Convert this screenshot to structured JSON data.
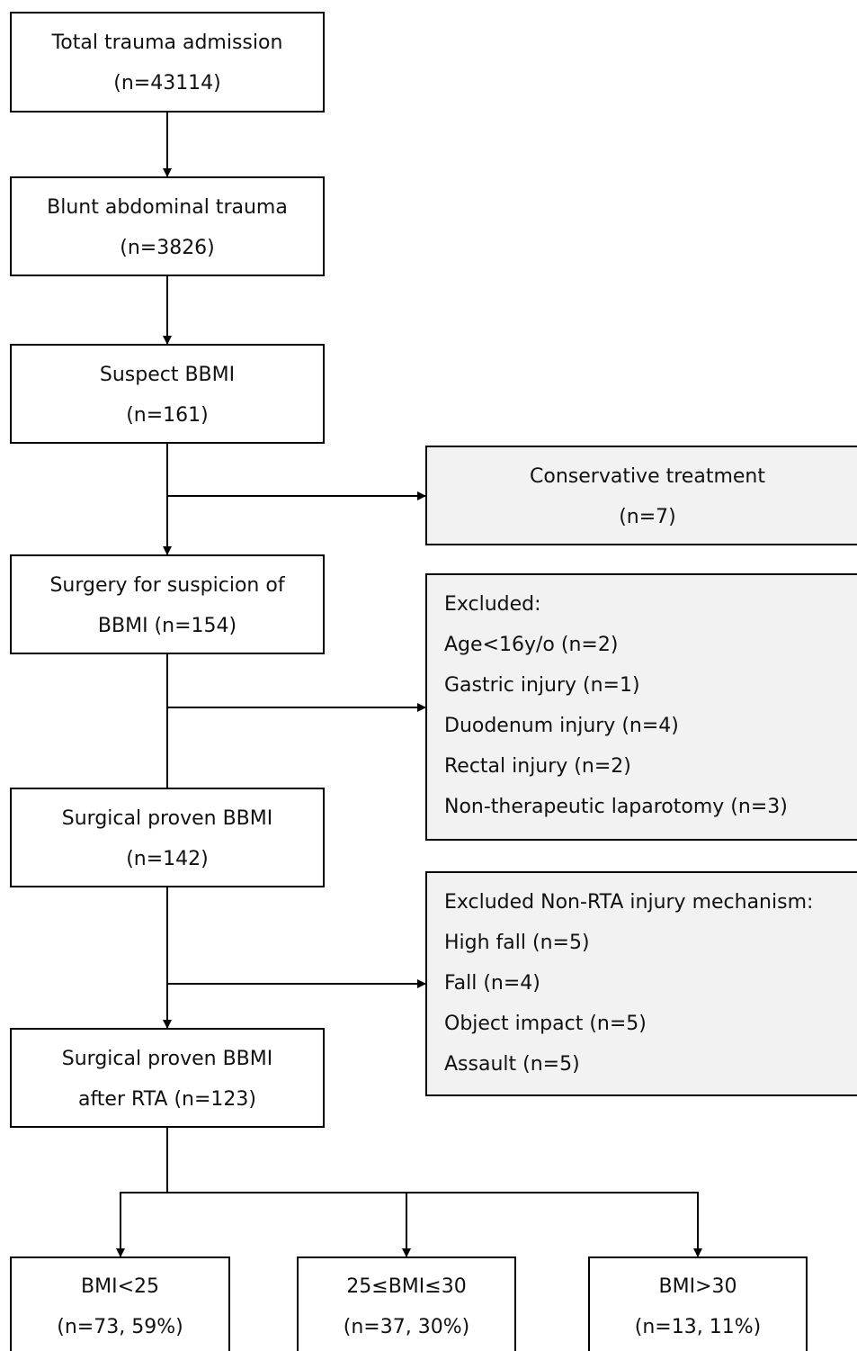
{
  "nodes": [
    {
      "lines": [
        "Total trauma admission",
        "(n=43114)"
      ]
    },
    {
      "lines": [
        "Blunt abdominal trauma",
        "(n=3826)"
      ]
    },
    {
      "lines": [
        "Suspect BBMI",
        "(n=161)"
      ]
    },
    {
      "lines": [
        "Conservative treatment",
        "(n=7)"
      ]
    },
    {
      "lines": [
        "Surgery for suspicion of",
        "BBMI (n=154)"
      ]
    },
    {
      "lines": [
        "Excluded:",
        "Age<16y/o (n=2)",
        "Gastric injury (n=1)",
        "Duodenum injury (n=4)",
        "Rectal injury (n=2)",
        "Non-therapeutic laparotomy (n=3)"
      ]
    },
    {
      "lines": [
        "Surgical proven BBMI",
        "(n=142)"
      ]
    },
    {
      "lines": [
        "Excluded Non-RTA injury mechanism:",
        "High fall (n=5)",
        "Fall (n=4)",
        "Object impact (n=5)",
        "Assault (n=5)"
      ]
    },
    {
      "lines": [
        "Surgical proven BBMI",
        "after RTA (n=123)"
      ]
    },
    {
      "lines": [
        "BMI<25",
        "(n=73, 59%)"
      ]
    },
    {
      "lines": [
        "25≤BMI≤30",
        "(n=37, 30%)"
      ]
    },
    {
      "lines": [
        "BMI>30",
        "(n=13, 11%)"
      ]
    }
  ]
}
